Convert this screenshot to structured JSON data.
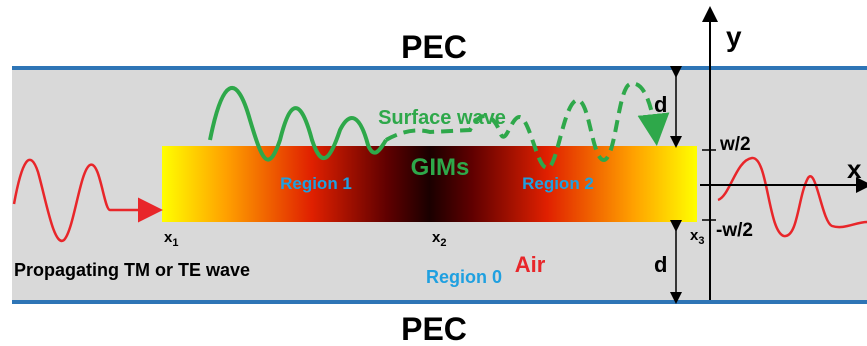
{
  "labels": {
    "pec_top": "PEC",
    "pec_bottom": "PEC",
    "surface_wave": "Surface wave",
    "gims": "GIMs",
    "region1": "Region 1",
    "region2": "Region 2",
    "region0": "Region 0",
    "air": "Air",
    "propagating": "Propagating TM or TE wave",
    "d_top": "d",
    "d_bottom": "d",
    "w2_pos": "w/2",
    "w2_neg": "-w/2",
    "axis_y": "y",
    "axis_x": "x",
    "x1": "x",
    "x1_sub": "1",
    "x2": "x",
    "x2_sub": "2",
    "x3": "x",
    "x3_sub": "3"
  },
  "colors": {
    "pec_line": "#2e75b6",
    "background_band": "#d9d9d9",
    "wave_red": "#e8262a",
    "surface_green": "#2ea84a",
    "region_blue": "#1fa0e0",
    "air_red": "#e8262a",
    "gradient_yellow": "#ffff00",
    "gradient_orange": "#ff6a00",
    "gradient_red": "#a80000",
    "gradient_dark": "#1a0000"
  }
}
